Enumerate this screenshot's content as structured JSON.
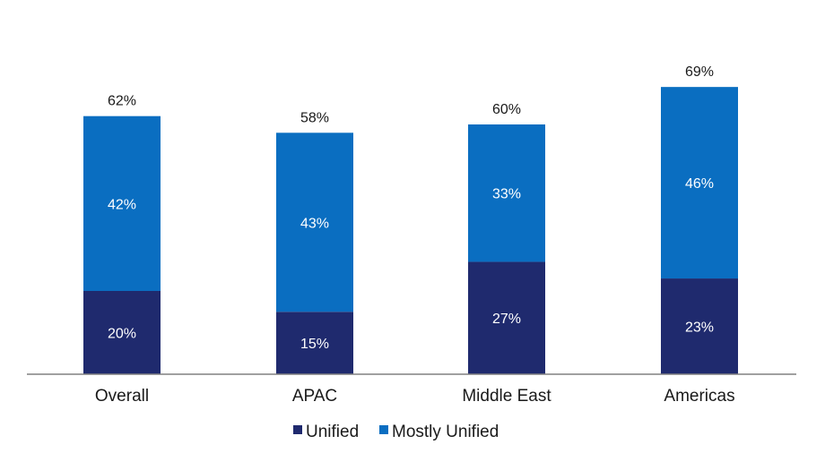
{
  "chart_data": {
    "type": "bar",
    "stacked": true,
    "categories": [
      "Overall",
      "APAC",
      "Middle East",
      "Americas"
    ],
    "series": [
      {
        "name": "Unified",
        "values": [
          20,
          15,
          27,
          23
        ],
        "labels": [
          "20%",
          "15%",
          "27%",
          "23%"
        ],
        "color": "#1f2a6e"
      },
      {
        "name": "Mostly Unified",
        "values": [
          42,
          43,
          33,
          46
        ],
        "labels": [
          "42%",
          "43%",
          "33%",
          "46%"
        ],
        "color": "#0a6ec1"
      }
    ],
    "totals": [
      62,
      58,
      60,
      69
    ],
    "total_labels": [
      "62%",
      "58%",
      "60%",
      "69%"
    ],
    "ylim": [
      0,
      70
    ],
    "grid": false,
    "legend_position": "bottom",
    "colors": {
      "unified": "#1f2a6e",
      "mostly_unified": "#0a6ec1",
      "axis": "#808080",
      "text_dark": "#1a1a1a",
      "text_light": "#ffffff"
    }
  }
}
